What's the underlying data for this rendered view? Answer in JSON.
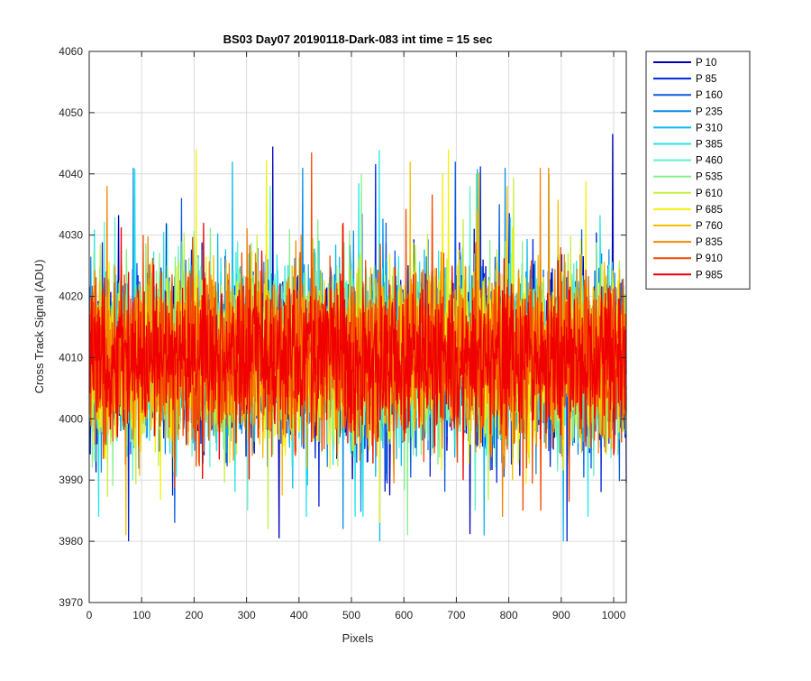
{
  "chart_data": {
    "type": "line",
    "title": "BS03 Day07 20190118-Dark-083 int time = 15 sec",
    "xlabel": "Pixels",
    "ylabel": "Cross Track Signal (ADU)",
    "xlim": [
      0,
      1024
    ],
    "ylim": [
      3970,
      4060
    ],
    "xticks": [
      0,
      100,
      200,
      300,
      400,
      500,
      600,
      700,
      800,
      900,
      1000
    ],
    "yticks": [
      3970,
      3980,
      3990,
      4000,
      4010,
      4020,
      4030,
      4040,
      4050,
      4060
    ],
    "grid": true,
    "legend_position": "outside-top-right",
    "n_points_per_series": 1024,
    "typical_level": 4010,
    "series": [
      {
        "name": "P 10",
        "color": "#0000b8",
        "min": 3977,
        "max": 4053
      },
      {
        "name": "P 85",
        "color": "#0022d6",
        "min": 3980,
        "max": 4048
      },
      {
        "name": "P 160",
        "color": "#0a5ce0",
        "min": 3983,
        "max": 4042
      },
      {
        "name": "P 235",
        "color": "#0a8ee6",
        "min": 3982,
        "max": 4041
      },
      {
        "name": "P 310",
        "color": "#10b8ec",
        "min": 3980,
        "max": 4042
      },
      {
        "name": "P 385",
        "color": "#25e6ea",
        "min": 3984,
        "max": 4047
      },
      {
        "name": "P 460",
        "color": "#5cf2cc",
        "min": 3985,
        "max": 4038
      },
      {
        "name": "P 535",
        "color": "#86f08a",
        "min": 3981,
        "max": 4040
      },
      {
        "name": "P 610",
        "color": "#c4f040",
        "min": 3982,
        "max": 4043
      },
      {
        "name": "P 685",
        "color": "#f4f00a",
        "min": 3983,
        "max": 4044
      },
      {
        "name": "P 760",
        "color": "#f6be00",
        "min": 3981,
        "max": 4042
      },
      {
        "name": "P 835",
        "color": "#f68400",
        "min": 3984,
        "max": 4041
      },
      {
        "name": "P 910",
        "color": "#f24800",
        "min": 3985,
        "max": 4048
      },
      {
        "name": "P 985",
        "color": "#f00000",
        "min": 3990,
        "max": 4032
      }
    ]
  }
}
